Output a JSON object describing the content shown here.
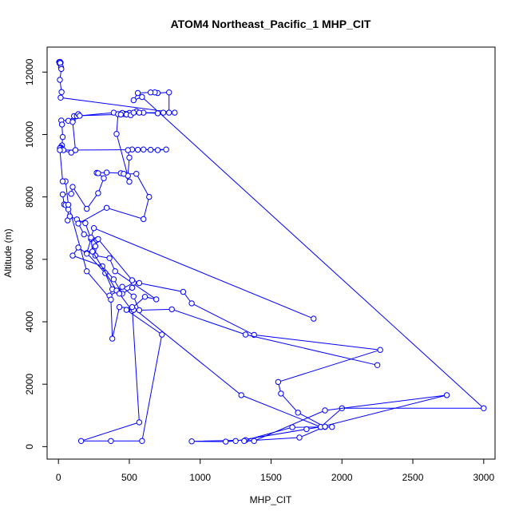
{
  "chart_data": {
    "type": "line",
    "title": "ATOM4 Northeast_Pacific_1 MHP_CIT",
    "xlabel": "MHP_CIT",
    "ylabel": "Altitude (m)",
    "xlim": [
      -80,
      3080
    ],
    "ylim": [
      -400,
      12800
    ],
    "xticks": [
      0,
      500,
      1000,
      1500,
      2000,
      2500,
      3000
    ],
    "yticks": [
      0,
      2000,
      4000,
      6000,
      8000,
      10000,
      12000
    ],
    "grid": false,
    "line_color": "#0000ff",
    "series": [
      {
        "points": [
          [
            5,
            12320
          ],
          [
            10,
            12330
          ],
          [
            15,
            12300
          ],
          [
            8,
            12280
          ],
          [
            12,
            12290
          ],
          [
            18,
            12150
          ],
          [
            20,
            12100
          ],
          [
            10,
            11750
          ],
          [
            22,
            11360
          ],
          [
            15,
            11180
          ],
          [
            820,
            10700
          ],
          [
            600,
            10700
          ],
          [
            500,
            10690
          ],
          [
            460,
            10660
          ],
          [
            470,
            10660
          ],
          [
            480,
            10650
          ],
          [
            130,
            10600
          ],
          [
            120,
            10580
          ],
          [
            100,
            10440
          ],
          [
            70,
            10440
          ],
          [
            20,
            10450
          ],
          [
            25,
            10320
          ],
          [
            30,
            9920
          ],
          [
            25,
            9650
          ],
          [
            15,
            9590
          ],
          [
            20,
            9550
          ],
          [
            10,
            9560
          ],
          [
            25,
            9520
          ],
          [
            35,
            9500
          ],
          [
            760,
            9520
          ],
          [
            700,
            9500
          ],
          [
            650,
            9510
          ],
          [
            600,
            9520
          ],
          [
            560,
            9510
          ],
          [
            520,
            9520
          ],
          [
            490,
            9500
          ],
          [
            500,
            9260
          ],
          [
            490,
            8680
          ],
          [
            440,
            8760
          ],
          [
            340,
            8780
          ],
          [
            270,
            8770
          ],
          [
            280,
            8760
          ],
          [
            320,
            8600
          ],
          [
            280,
            8120
          ],
          [
            200,
            7620
          ],
          [
            100,
            8320
          ],
          [
            90,
            8100
          ],
          [
            30,
            8080
          ],
          [
            40,
            7760
          ],
          [
            50,
            7740
          ],
          [
            70,
            7600
          ],
          [
            65,
            7250
          ],
          [
            80,
            7380
          ],
          [
            130,
            7280
          ],
          [
            190,
            7160
          ],
          [
            230,
            6650
          ],
          [
            200,
            6200
          ],
          [
            330,
            5560
          ],
          [
            380,
            5040
          ],
          [
            360,
            4840
          ],
          [
            530,
            5250
          ],
          [
            520,
            5090
          ],
          [
            450,
            4900
          ],
          [
            390,
            5360
          ],
          [
            310,
            5780
          ],
          [
            100,
            6120
          ],
          [
            140,
            6380
          ],
          [
            200,
            6180
          ],
          [
            260,
            6420
          ],
          [
            270,
            6620
          ],
          [
            260,
            6120
          ],
          [
            360,
            6040
          ],
          [
            400,
            5620
          ],
          [
            690,
            4720
          ],
          [
            610,
            4800
          ],
          [
            520,
            4440
          ],
          [
            430,
            4470
          ],
          [
            380,
            3460
          ],
          [
            370,
            4710
          ],
          [
            200,
            5620
          ],
          [
            70,
            7750
          ],
          [
            50,
            8500
          ],
          [
            30,
            8500
          ],
          [
            10,
            9500
          ],
          [
            90,
            9420
          ],
          [
            120,
            9500
          ],
          [
            100,
            10400
          ],
          [
            110,
            10590
          ],
          [
            130,
            10590
          ],
          [
            140,
            10650
          ],
          [
            150,
            10600
          ],
          [
            390,
            10700
          ],
          [
            450,
            10690
          ],
          [
            550,
            10740
          ],
          [
            570,
            10700
          ],
          [
            700,
            10680
          ],
          [
            740,
            10700
          ],
          [
            780,
            10700
          ],
          [
            780,
            11350
          ],
          [
            700,
            11330
          ],
          [
            680,
            11350
          ],
          [
            650,
            11350
          ],
          [
            560,
            11330
          ],
          [
            530,
            11100
          ],
          [
            590,
            11200
          ],
          [
            3000,
            1230
          ],
          [
            2000,
            1230
          ],
          [
            1850,
            630
          ],
          [
            1750,
            560
          ],
          [
            1250,
            180
          ],
          [
            1180,
            160
          ],
          [
            940,
            170
          ],
          [
            1320,
            210
          ],
          [
            1650,
            620
          ],
          [
            1930,
            630
          ],
          [
            1880,
            630
          ],
          [
            1690,
            1090
          ],
          [
            1570,
            1700
          ],
          [
            1550,
            2070
          ],
          [
            2270,
            3100
          ],
          [
            1380,
            3580
          ],
          [
            940,
            4590
          ],
          [
            880,
            4960
          ],
          [
            570,
            5240
          ],
          [
            520,
            5330
          ],
          [
            280,
            6650
          ],
          [
            180,
            6800
          ],
          [
            140,
            7150
          ],
          [
            340,
            7650
          ],
          [
            600,
            7290
          ],
          [
            640,
            8000
          ],
          [
            550,
            8740
          ],
          [
            460,
            8740
          ],
          [
            500,
            8490
          ],
          [
            410,
            10020
          ],
          [
            420,
            10650
          ],
          [
            440,
            10640
          ],
          [
            480,
            10640
          ],
          [
            510,
            10620
          ],
          [
            530,
            10700
          ]
        ]
      },
      {
        "points": [
          [
            1800,
            4100
          ],
          [
            250,
            7000
          ],
          [
            230,
            6700
          ],
          [
            240,
            6250
          ],
          [
            410,
            5000
          ],
          [
            430,
            4900
          ],
          [
            520,
            4350
          ],
          [
            530,
            4380
          ],
          [
            480,
            4380
          ],
          [
            730,
            3590
          ],
          [
            590,
            180
          ],
          [
            370,
            180
          ],
          [
            160,
            180
          ],
          [
            570,
            780
          ],
          [
            520,
            4470
          ],
          [
            1290,
            1650
          ],
          [
            1850,
            630
          ],
          [
            2740,
            1650
          ],
          [
            1880,
            1160
          ],
          [
            1380,
            180
          ],
          [
            1310,
            180
          ],
          [
            1700,
            290
          ],
          [
            1880,
            640
          ]
        ]
      },
      {
        "points": [
          [
            2250,
            2610
          ],
          [
            1320,
            3590
          ],
          [
            800,
            4400
          ],
          [
            570,
            4370
          ],
          [
            530,
            4810
          ],
          [
            450,
            5120
          ]
        ]
      }
    ]
  }
}
